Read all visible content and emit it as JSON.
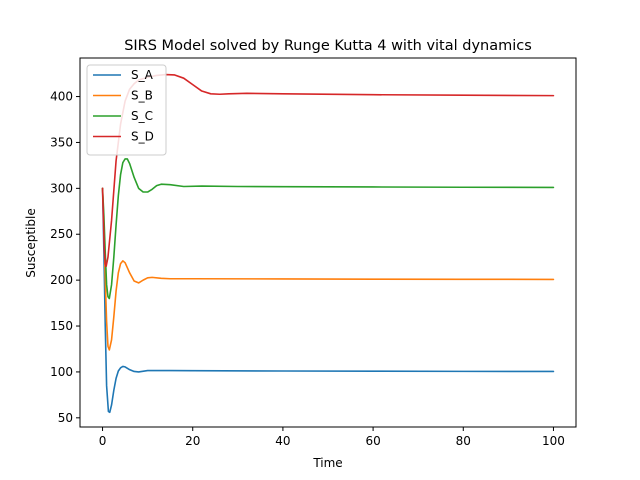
{
  "chart_data": {
    "type": "line",
    "title": "SIRS Model solved by Runge Kutta 4 with vital dynamics",
    "xlabel": "Time",
    "ylabel": "Susceptible",
    "xlim": [
      -5,
      105
    ],
    "ylim": [
      40,
      442
    ],
    "xticks": [
      0,
      20,
      40,
      60,
      80,
      100
    ],
    "yticks": [
      50,
      100,
      150,
      200,
      250,
      300,
      350,
      400
    ],
    "grid": false,
    "legend_position": "top-left",
    "series": [
      {
        "name": "S_A",
        "color": "#1f77b4",
        "points": [
          [
            0,
            300
          ],
          [
            0.3,
            230
          ],
          [
            0.6,
            150
          ],
          [
            0.9,
            85
          ],
          [
            1.3,
            57
          ],
          [
            1.6,
            56
          ],
          [
            2,
            64
          ],
          [
            2.5,
            80
          ],
          [
            3,
            93
          ],
          [
            3.5,
            101
          ],
          [
            4,
            104.5
          ],
          [
            4.5,
            106
          ],
          [
            5,
            105.5
          ],
          [
            6,
            102.5
          ],
          [
            7,
            100.5
          ],
          [
            8,
            100
          ],
          [
            10,
            101.5
          ],
          [
            15,
            101.5
          ],
          [
            20,
            101.3
          ],
          [
            40,
            101
          ],
          [
            60,
            100.8
          ],
          [
            80,
            100.6
          ],
          [
            100,
            100.5
          ]
        ]
      },
      {
        "name": "S_B",
        "color": "#ff7f0e",
        "points": [
          [
            0,
            300
          ],
          [
            0.3,
            260
          ],
          [
            0.6,
            200
          ],
          [
            0.9,
            155
          ],
          [
            1.2,
            128
          ],
          [
            1.5,
            124
          ],
          [
            2,
            135
          ],
          [
            2.5,
            160
          ],
          [
            3,
            188
          ],
          [
            3.5,
            208
          ],
          [
            4,
            218
          ],
          [
            4.5,
            221
          ],
          [
            5,
            219
          ],
          [
            6,
            208
          ],
          [
            7,
            199
          ],
          [
            8,
            197
          ],
          [
            9,
            200
          ],
          [
            10,
            202.5
          ],
          [
            11,
            203
          ],
          [
            13,
            202
          ],
          [
            15,
            201.5
          ],
          [
            20,
            201.5
          ],
          [
            40,
            201.3
          ],
          [
            60,
            201
          ],
          [
            80,
            200.9
          ],
          [
            100,
            200.8
          ]
        ]
      },
      {
        "name": "S_C",
        "color": "#2ca02c",
        "points": [
          [
            0,
            300
          ],
          [
            0.3,
            270
          ],
          [
            0.6,
            230
          ],
          [
            0.9,
            195
          ],
          [
            1.2,
            182
          ],
          [
            1.5,
            180
          ],
          [
            2,
            195
          ],
          [
            2.5,
            225
          ],
          [
            3,
            260
          ],
          [
            3.5,
            292
          ],
          [
            4,
            315
          ],
          [
            4.5,
            328
          ],
          [
            5,
            332
          ],
          [
            5.5,
            332
          ],
          [
            6,
            327
          ],
          [
            7,
            312
          ],
          [
            8,
            300
          ],
          [
            9,
            296
          ],
          [
            10,
            296
          ],
          [
            11,
            299
          ],
          [
            12,
            303
          ],
          [
            13,
            304.5
          ],
          [
            15,
            304
          ],
          [
            18,
            302
          ],
          [
            22,
            302.5
          ],
          [
            30,
            302
          ],
          [
            40,
            301.8
          ],
          [
            60,
            301.5
          ],
          [
            80,
            301.2
          ],
          [
            100,
            301
          ]
        ]
      },
      {
        "name": "S_D",
        "color": "#d62728",
        "points": [
          [
            0,
            300
          ],
          [
            0.2,
            265
          ],
          [
            0.4,
            232
          ],
          [
            0.6,
            218
          ],
          [
            0.8,
            215
          ],
          [
            1.2,
            225
          ],
          [
            2,
            265
          ],
          [
            3,
            330
          ],
          [
            4,
            370
          ],
          [
            5,
            395
          ],
          [
            6,
            408
          ],
          [
            7,
            414
          ],
          [
            8,
            418
          ],
          [
            10,
            421
          ],
          [
            12,
            423
          ],
          [
            14,
            424
          ],
          [
            16,
            423.5
          ],
          [
            18,
            420
          ],
          [
            20,
            413
          ],
          [
            22,
            406
          ],
          [
            24,
            403
          ],
          [
            26,
            402.5
          ],
          [
            28,
            403
          ],
          [
            32,
            403.5
          ],
          [
            40,
            403
          ],
          [
            60,
            402
          ],
          [
            80,
            401.5
          ],
          [
            100,
            401
          ]
        ]
      }
    ]
  }
}
